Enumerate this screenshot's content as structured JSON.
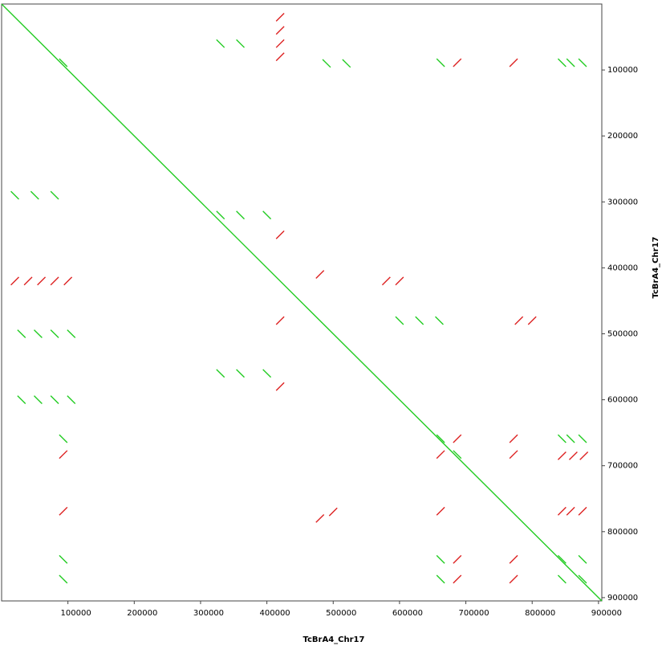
{
  "chart_data": {
    "type": "dotplot",
    "x_label": "TcBrA4_Chr17",
    "y_label": "TcBrA4_Chr17",
    "xlim": [
      0,
      905000
    ],
    "ylim": [
      0,
      905000
    ],
    "xticks": [
      100000,
      200000,
      300000,
      400000,
      500000,
      600000,
      700000,
      800000,
      900000
    ],
    "yticks": [
      100000,
      200000,
      300000,
      400000,
      500000,
      600000,
      700000,
      800000,
      900000
    ],
    "series": [
      {
        "color": "#22cc22",
        "segments": [
          [
            0,
            0,
            905000,
            905000
          ]
        ]
      },
      {
        "color": "#22cc22",
        "segments": [
          [
            656000,
            653000,
            668000,
            665000
          ],
          [
            839000,
            653000,
            851000,
            665000
          ],
          [
            852000,
            653000,
            864000,
            665000
          ],
          [
            870000,
            653000,
            882000,
            665000
          ],
          [
            681000,
            677000,
            693000,
            689000
          ],
          [
            656000,
            836000,
            668000,
            848000
          ],
          [
            839000,
            836000,
            851000,
            848000
          ],
          [
            870000,
            836000,
            882000,
            848000
          ],
          [
            656000,
            866000,
            668000,
            878000
          ],
          [
            839000,
            866000,
            851000,
            878000
          ],
          [
            870000,
            866000,
            882000,
            878000
          ],
          [
            656000,
            83000,
            668000,
            95000
          ],
          [
            839000,
            83000,
            851000,
            95000
          ],
          [
            852000,
            83000,
            864000,
            95000
          ],
          [
            870000,
            83000,
            882000,
            95000
          ],
          [
            87000,
            653000,
            99000,
            665000
          ],
          [
            87000,
            836000,
            99000,
            848000
          ],
          [
            87000,
            866000,
            99000,
            878000
          ],
          [
            87000,
            83000,
            99000,
            95000
          ],
          [
            24000,
            494000,
            36000,
            506000
          ],
          [
            49000,
            494000,
            61000,
            506000
          ],
          [
            74000,
            494000,
            86000,
            506000
          ],
          [
            99000,
            494000,
            111000,
            506000
          ],
          [
            24000,
            594000,
            36000,
            606000
          ],
          [
            49000,
            594000,
            61000,
            606000
          ],
          [
            74000,
            594000,
            86000,
            606000
          ],
          [
            99000,
            594000,
            111000,
            606000
          ],
          [
            324000,
            314000,
            336000,
            326000
          ],
          [
            354000,
            314000,
            366000,
            326000
          ],
          [
            394000,
            314000,
            406000,
            326000
          ],
          [
            324000,
            554000,
            336000,
            566000
          ],
          [
            354000,
            554000,
            366000,
            566000
          ],
          [
            394000,
            554000,
            406000,
            566000
          ],
          [
            594000,
            474000,
            606000,
            486000
          ],
          [
            624000,
            474000,
            636000,
            486000
          ],
          [
            654000,
            474000,
            666000,
            486000
          ],
          [
            14000,
            284000,
            26000,
            296000
          ],
          [
            44000,
            284000,
            56000,
            296000
          ],
          [
            74000,
            284000,
            86000,
            296000
          ],
          [
            324000,
            54000,
            336000,
            66000
          ],
          [
            354000,
            54000,
            366000,
            66000
          ],
          [
            484000,
            84000,
            496000,
            96000
          ],
          [
            514000,
            84000,
            526000,
            96000
          ]
        ]
      },
      {
        "color": "#dd2222",
        "segments": [
          [
            681000,
            665000,
            693000,
            653000
          ],
          [
            766000,
            665000,
            778000,
            653000
          ],
          [
            656000,
            689000,
            668000,
            677000
          ],
          [
            766000,
            689000,
            778000,
            677000
          ],
          [
            681000,
            848000,
            693000,
            836000
          ],
          [
            766000,
            848000,
            778000,
            836000
          ],
          [
            681000,
            878000,
            693000,
            866000
          ],
          [
            766000,
            878000,
            778000,
            866000
          ],
          [
            681000,
            95000,
            693000,
            83000
          ],
          [
            766000,
            95000,
            778000,
            83000
          ],
          [
            87000,
            689000,
            99000,
            677000
          ],
          [
            87000,
            775000,
            99000,
            763000
          ],
          [
            839000,
            775000,
            851000,
            763000
          ],
          [
            852000,
            775000,
            864000,
            763000
          ],
          [
            870000,
            775000,
            882000,
            763000
          ],
          [
            656000,
            775000,
            668000,
            763000
          ],
          [
            839000,
            691000,
            851000,
            679000
          ],
          [
            856000,
            691000,
            868000,
            679000
          ],
          [
            872000,
            691000,
            884000,
            679000
          ],
          [
            14000,
            426000,
            26000,
            414000
          ],
          [
            34000,
            426000,
            46000,
            414000
          ],
          [
            54000,
            426000,
            66000,
            414000
          ],
          [
            74000,
            426000,
            86000,
            414000
          ],
          [
            94000,
            426000,
            106000,
            414000
          ],
          [
            414000,
            26000,
            426000,
            14000
          ],
          [
            414000,
            46000,
            426000,
            34000
          ],
          [
            414000,
            66000,
            426000,
            54000
          ],
          [
            414000,
            86000,
            426000,
            74000
          ],
          [
            414000,
            486000,
            426000,
            474000
          ],
          [
            414000,
            586000,
            426000,
            574000
          ],
          [
            474000,
            416000,
            486000,
            404000
          ],
          [
            574000,
            426000,
            586000,
            414000
          ],
          [
            594000,
            426000,
            606000,
            414000
          ],
          [
            414000,
            356000,
            426000,
            344000
          ],
          [
            794000,
            486000,
            806000,
            474000
          ],
          [
            774000,
            486000,
            786000,
            474000
          ],
          [
            494000,
            776000,
            506000,
            764000
          ],
          [
            474000,
            786000,
            486000,
            774000
          ]
        ]
      }
    ]
  }
}
